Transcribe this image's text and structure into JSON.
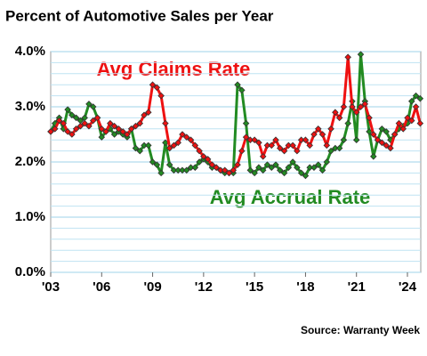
{
  "chart_data": {
    "type": "line",
    "title": "Percent of Automotive Sales per Year",
    "source": "Source: Warranty Week",
    "annotations": [
      {
        "text": "Avg Claims Rate",
        "color": "#ee1111"
      },
      {
        "text": "Avg Accrual Rate",
        "color": "#228b22"
      }
    ],
    "x": [
      2003,
      2003.25,
      2003.5,
      2003.75,
      2004,
      2004.25,
      2004.5,
      2004.75,
      2005,
      2005.25,
      2005.5,
      2005.75,
      2006,
      2006.25,
      2006.5,
      2006.75,
      2007,
      2007.25,
      2007.5,
      2007.75,
      2008,
      2008.25,
      2008.5,
      2008.75,
      2009,
      2009.25,
      2009.5,
      2009.75,
      2010,
      2010.25,
      2010.5,
      2010.75,
      2011,
      2011.25,
      2011.5,
      2011.75,
      2012,
      2012.25,
      2012.5,
      2012.75,
      2013,
      2013.25,
      2013.5,
      2013.75,
      2014,
      2014.25,
      2014.5,
      2014.75,
      2015,
      2015.25,
      2015.5,
      2015.75,
      2016,
      2016.25,
      2016.5,
      2016.75,
      2017,
      2017.25,
      2017.5,
      2017.75,
      2018,
      2018.25,
      2018.5,
      2018.75,
      2019,
      2019.25,
      2019.5,
      2019.75,
      2020,
      2020.25,
      2020.5,
      2020.75,
      2021,
      2021.25,
      2021.5,
      2021.75,
      2022,
      2022.25,
      2022.5,
      2022.75,
      2023,
      2023.25,
      2023.5,
      2023.75,
      2024,
      2024.25,
      2024.5,
      2024.75
    ],
    "series": [
      {
        "name": "Avg Accrual Rate",
        "color": "#228b22",
        "values": [
          2.55,
          2.7,
          2.8,
          2.6,
          2.95,
          2.85,
          2.8,
          2.75,
          2.8,
          3.05,
          3.0,
          2.8,
          2.45,
          2.55,
          2.6,
          2.5,
          2.55,
          2.5,
          2.45,
          2.6,
          2.25,
          2.2,
          2.3,
          2.3,
          2.0,
          1.95,
          1.8,
          2.35,
          1.95,
          1.85,
          1.85,
          1.85,
          1.85,
          1.9,
          1.9,
          2.0,
          2.05,
          2.0,
          1.9,
          1.9,
          1.85,
          1.8,
          1.8,
          1.8,
          3.4,
          3.3,
          2.7,
          1.85,
          1.8,
          1.9,
          1.85,
          1.95,
          1.9,
          1.95,
          1.85,
          1.8,
          1.9,
          2.0,
          1.9,
          1.8,
          1.75,
          1.9,
          1.9,
          1.95,
          1.85,
          2.0,
          2.2,
          2.25,
          2.25,
          2.4,
          2.7,
          3.1,
          2.4,
          3.95,
          3.1,
          2.55,
          2.1,
          2.4,
          2.6,
          2.55,
          2.4,
          2.5,
          2.6,
          2.65,
          2.7,
          3.1,
          3.2,
          3.15
        ]
      },
      {
        "name": "Avg Claims Rate",
        "color": "#ee1111",
        "values": [
          2.55,
          2.6,
          2.75,
          2.7,
          2.55,
          2.5,
          2.6,
          2.65,
          2.7,
          2.65,
          2.75,
          2.8,
          2.6,
          2.55,
          2.7,
          2.65,
          2.6,
          2.55,
          2.5,
          2.6,
          2.65,
          2.7,
          2.85,
          2.9,
          3.4,
          3.35,
          3.2,
          2.7,
          2.25,
          2.3,
          2.35,
          2.5,
          2.45,
          2.4,
          2.3,
          2.2,
          2.1,
          2.05,
          1.95,
          1.9,
          1.85,
          1.85,
          1.8,
          1.85,
          1.95,
          2.2,
          2.45,
          2.4,
          2.4,
          2.35,
          2.1,
          2.3,
          2.3,
          2.4,
          2.25,
          2.2,
          2.3,
          2.3,
          2.2,
          2.4,
          2.4,
          2.3,
          2.5,
          2.6,
          2.5,
          2.3,
          2.6,
          2.9,
          2.8,
          3.0,
          3.9,
          3.0,
          2.9,
          3.0,
          3.05,
          2.8,
          2.5,
          2.4,
          2.35,
          2.3,
          2.25,
          2.5,
          2.7,
          2.6,
          2.8,
          2.75,
          3.0,
          2.7
        ]
      }
    ],
    "xlim": [
      2003,
      2024.75
    ],
    "xticks": [
      {
        "value": 2003,
        "label": "'03"
      },
      {
        "value": 2006,
        "label": "'06"
      },
      {
        "value": 2009,
        "label": "'09"
      },
      {
        "value": 2012,
        "label": "'12"
      },
      {
        "value": 2015,
        "label": "'15"
      },
      {
        "value": 2018,
        "label": "'18"
      },
      {
        "value": 2021,
        "label": "'21"
      },
      {
        "value": 2024,
        "label": "'24"
      }
    ],
    "ylim": [
      0,
      4
    ],
    "yticks": [
      {
        "value": 0,
        "label": "0.0%"
      },
      {
        "value": 1,
        "label": "1.0%"
      },
      {
        "value": 2,
        "label": "2.0%"
      },
      {
        "value": 3,
        "label": "3.0%"
      },
      {
        "value": 4,
        "label": "4.0%"
      }
    ],
    "minor_yticks": [
      0.2,
      0.4,
      0.6,
      0.8,
      1.2,
      1.4,
      1.6,
      1.8,
      2.2,
      2.4,
      2.6,
      2.8,
      3.2,
      3.4,
      3.6,
      3.8
    ],
    "grid": true,
    "markers": "diamond"
  }
}
